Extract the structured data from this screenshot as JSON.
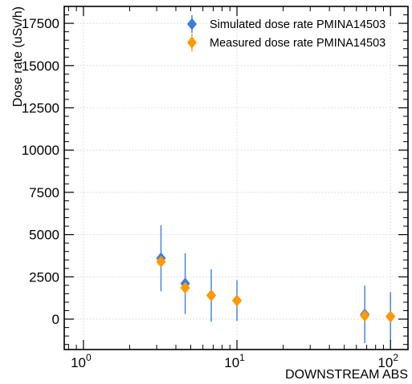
{
  "chart_data": {
    "type": "scatter",
    "xlabel": "DOWNSTREAM ABS",
    "ylabel": "Dose rate (uSv/h)",
    "xscale": "log",
    "xlim": [
      0.75,
      130
    ],
    "ylim": [
      -1800,
      18500
    ],
    "grid": true,
    "legend_position": "top-right",
    "x_ticks": [
      {
        "value": 1,
        "base": "10",
        "exp": "0"
      },
      {
        "value": 10,
        "base": "10",
        "exp": "1"
      },
      {
        "value": 100,
        "base": "10",
        "exp": "2"
      }
    ],
    "y_ticks": [
      {
        "value": 0,
        "label": "0"
      },
      {
        "value": 2500,
        "label": "2500"
      },
      {
        "value": 5000,
        "label": "5000"
      },
      {
        "value": 7500,
        "label": "7500"
      },
      {
        "value": 10000,
        "label": "10000"
      },
      {
        "value": 12500,
        "label": "12500"
      },
      {
        "value": 15000,
        "label": "15000"
      },
      {
        "value": 17500,
        "label": "17500"
      }
    ],
    "series": [
      {
        "name": "Simulated dose rate PMINA14503",
        "color": "#3b7ddd",
        "marker": "diamond",
        "points": [
          {
            "x": 3.2,
            "y": 3600,
            "err": 1950
          },
          {
            "x": 4.6,
            "y": 2100,
            "err": 1800
          },
          {
            "x": 6.8,
            "y": 1400,
            "err": 1550
          },
          {
            "x": 10,
            "y": 1100,
            "err": 1200
          },
          {
            "x": 68,
            "y": 280,
            "err": 1700
          },
          {
            "x": 100,
            "y": 150,
            "err": 1450
          }
        ]
      },
      {
        "name": "Measured dose rate PMINA14503",
        "color": "#ff9900",
        "marker": "diamond",
        "points": [
          {
            "x": 3.2,
            "y": 3400
          },
          {
            "x": 4.6,
            "y": 1850
          },
          {
            "x": 6.8,
            "y": 1400
          },
          {
            "x": 10,
            "y": 1100
          },
          {
            "x": 68,
            "y": 200
          },
          {
            "x": 100,
            "y": 150
          }
        ]
      }
    ]
  }
}
